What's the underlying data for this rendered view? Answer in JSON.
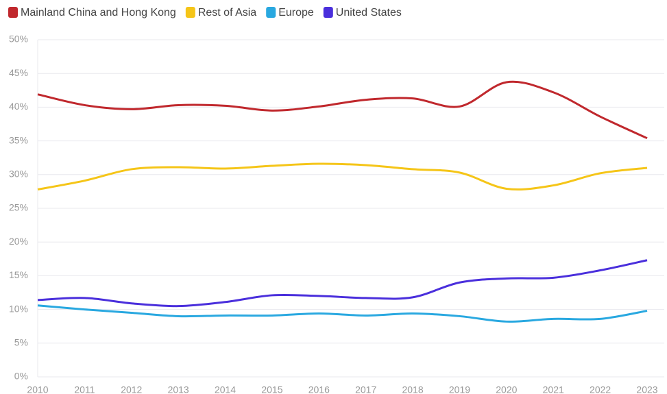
{
  "chart_data": {
    "type": "line",
    "x": [
      "2010",
      "2011",
      "2012",
      "2013",
      "2014",
      "2015",
      "2016",
      "2017",
      "2018",
      "2019",
      "2020",
      "2021",
      "2022",
      "2023"
    ],
    "series": [
      {
        "name": "Mainland China and Hong Kong",
        "color": "#c0282d",
        "values": [
          41.9,
          40.3,
          39.7,
          40.3,
          40.2,
          39.5,
          40.1,
          41.1,
          41.3,
          40.1,
          43.7,
          42.2,
          38.6,
          35.4
        ]
      },
      {
        "name": "Rest of Asia",
        "color": "#f5c518",
        "values": [
          27.8,
          29.1,
          30.8,
          31.1,
          30.9,
          31.3,
          31.6,
          31.4,
          30.8,
          30.3,
          27.9,
          28.4,
          30.2,
          31.0
        ]
      },
      {
        "name": "Europe",
        "color": "#29a8e0",
        "values": [
          10.6,
          10.0,
          9.5,
          9.0,
          9.1,
          9.1,
          9.4,
          9.1,
          9.4,
          9.0,
          8.2,
          8.6,
          8.6,
          9.8
        ]
      },
      {
        "name": "United States",
        "color": "#4a2fdc",
        "values": [
          11.4,
          11.7,
          10.9,
          10.5,
          11.1,
          12.1,
          12.0,
          11.7,
          11.8,
          14.0,
          14.6,
          14.7,
          15.8,
          17.3
        ]
      }
    ],
    "ylim": [
      0,
      50
    ],
    "yticks": [
      {
        "value": 0,
        "label": "0%"
      },
      {
        "value": 5,
        "label": "5%"
      },
      {
        "value": 10,
        "label": "10%"
      },
      {
        "value": 15,
        "label": "15%"
      },
      {
        "value": 20,
        "label": "20%"
      },
      {
        "value": 25,
        "label": "25%"
      },
      {
        "value": 30,
        "label": "30%"
      },
      {
        "value": 35,
        "label": "35%"
      },
      {
        "value": 40,
        "label": "40%"
      },
      {
        "value": 45,
        "label": "45%"
      },
      {
        "value": 50,
        "label": "50%"
      }
    ],
    "grid": true,
    "legend": "top-left"
  }
}
